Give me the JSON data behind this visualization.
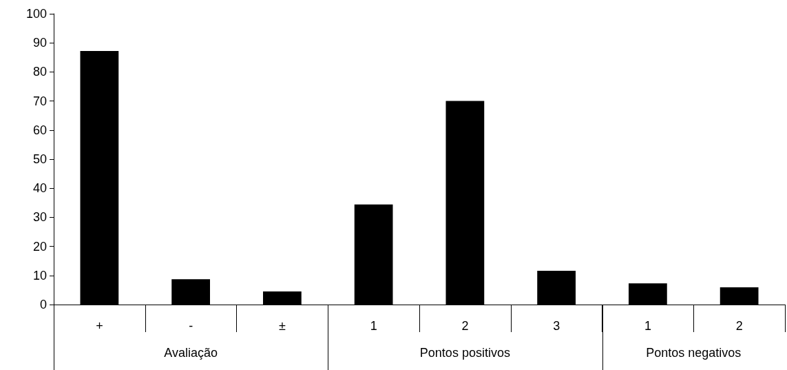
{
  "chart_data": {
    "type": "bar",
    "categories": [
      "+",
      "-",
      "±",
      "1",
      "2",
      "3",
      "1",
      "2"
    ],
    "values": [
      87.2,
      8.7,
      4.5,
      34.4,
      70,
      11.6,
      7.3,
      5.9
    ],
    "color": "#000000",
    "ylim": [
      0,
      100
    ],
    "yticks": [
      0,
      10,
      20,
      30,
      40,
      50,
      60,
      70,
      80,
      90,
      100
    ],
    "annotations": [
      "Avaliação",
      "Pontos positivos",
      "Pontos negativos"
    ]
  }
}
